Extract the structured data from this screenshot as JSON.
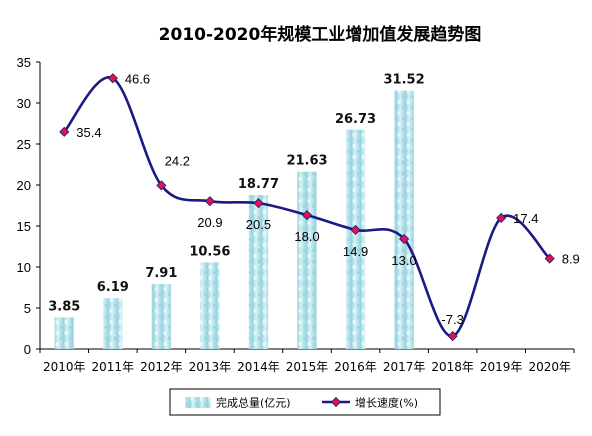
{
  "chart_data": {
    "type": "bar",
    "title": "2010-2020年规模工业增加值发展趋势图",
    "categories": [
      "2010年",
      "2011年",
      "2012年",
      "2013年",
      "2014年",
      "2015年",
      "2016年",
      "2017年",
      "2018年",
      "2019年",
      "2020年"
    ],
    "ylim": [
      0,
      35
    ],
    "yticks": [
      0,
      5,
      10,
      15,
      20,
      25,
      30,
      35
    ],
    "grid": false,
    "legend_position": "bottom",
    "series": [
      {
        "name": "完成总量(亿元)",
        "type": "bar",
        "color": "#a9dfe8",
        "values": [
          3.85,
          6.19,
          7.91,
          10.56,
          18.77,
          21.63,
          26.73,
          31.52,
          null,
          null,
          null
        ],
        "labels": [
          "3.85",
          "6.19",
          "7.91",
          "10.56",
          "18.77",
          "21.63",
          "26.73",
          "31.52",
          "",
          "",
          ""
        ]
      },
      {
        "name": "增长速度(%)",
        "type": "line",
        "color": "#1a1a80",
        "marker_color": "#e0144c",
        "values": [
          35.4,
          46.6,
          24.2,
          20.9,
          20.5,
          18.0,
          14.9,
          13.0,
          -7.3,
          17.4,
          8.9
        ],
        "labels": [
          "35.4",
          "46.6",
          "24.2",
          "20.9",
          "20.5",
          "18.0",
          "14.9",
          "13.0",
          "-7.3",
          "17.4",
          "8.9"
        ]
      }
    ]
  }
}
